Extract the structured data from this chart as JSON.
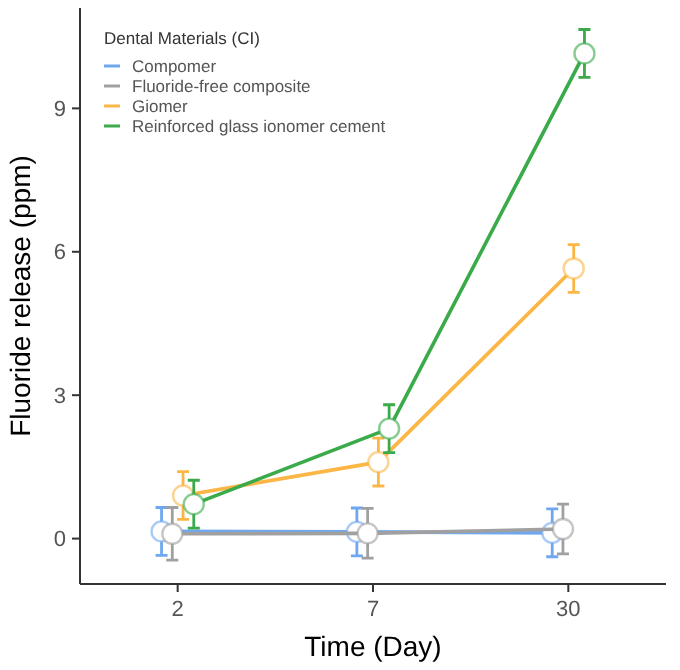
{
  "chart_data": {
    "type": "line",
    "xlabel": "Time (Day)",
    "ylabel": "Fluoride release (ppm)",
    "legend_title": "Dental Materials (CI)",
    "categories": [
      "2",
      "7",
      "30"
    ],
    "ylim": [
      -0.95,
      11.1
    ],
    "yticks": [
      0,
      3,
      6,
      9
    ],
    "grid": false,
    "legend": "top left",
    "marker": "circle",
    "line_style": "solid",
    "series": [
      {
        "name": "Compomer",
        "color": "#6fa8f0",
        "values": [
          0.15,
          0.14,
          0.12
        ],
        "errors": [
          0.5,
          0.5,
          0.5
        ]
      },
      {
        "name": "Fluoride-free composite",
        "color": "#a0a0a0",
        "values": [
          0.1,
          0.11,
          0.2
        ],
        "errors": [
          0.55,
          0.52,
          0.52
        ]
      },
      {
        "name": "Giomer",
        "color": "#fbb646",
        "values": [
          0.9,
          1.6,
          5.65
        ],
        "errors": [
          0.5,
          0.5,
          0.5
        ]
      },
      {
        "name": "Reinforced glass ionomer cement",
        "color": "#3aaa4a",
        "values": [
          0.72,
          2.3,
          10.15
        ],
        "errors": [
          0.5,
          0.5,
          0.5
        ]
      }
    ]
  }
}
